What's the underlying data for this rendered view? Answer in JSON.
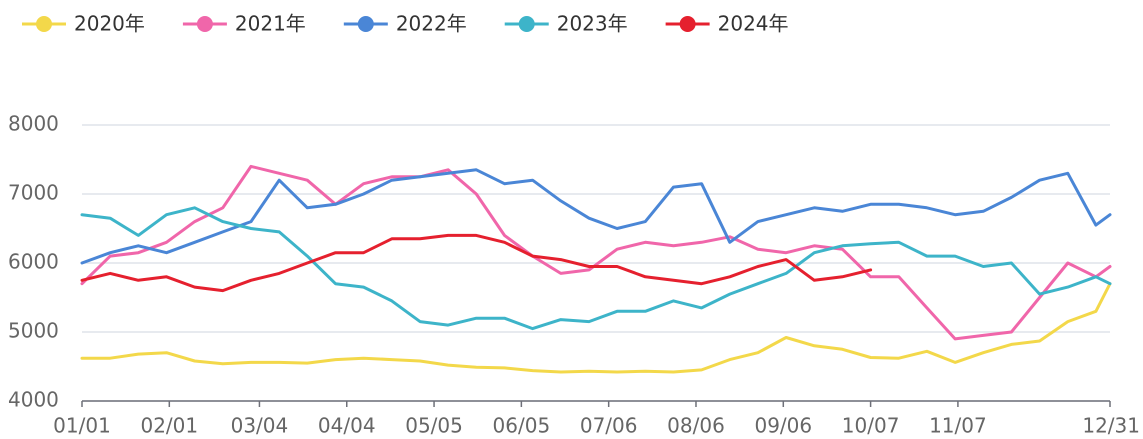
{
  "chart_data": {
    "type": "line",
    "x": [
      0,
      10,
      20,
      30,
      40,
      50,
      60,
      70,
      80,
      90,
      100,
      110,
      120,
      130,
      140,
      150,
      160,
      170,
      180,
      190,
      200,
      210,
      220,
      230,
      240,
      250,
      260,
      270,
      280,
      290,
      300,
      310,
      320,
      330,
      340,
      350,
      360,
      365
    ],
    "xlim": [
      0,
      365
    ],
    "xticks": [
      {
        "value": 0,
        "label": "01/01"
      },
      {
        "value": 31,
        "label": "02/01"
      },
      {
        "value": 63,
        "label": "03/04"
      },
      {
        "value": 94,
        "label": "04/04"
      },
      {
        "value": 125,
        "label": "05/05"
      },
      {
        "value": 156,
        "label": "06/05"
      },
      {
        "value": 187,
        "label": "07/06"
      },
      {
        "value": 218,
        "label": "08/06"
      },
      {
        "value": 249,
        "label": "09/06"
      },
      {
        "value": 280,
        "label": "10/07"
      },
      {
        "value": 311,
        "label": "11/07"
      },
      {
        "value": 365,
        "label": "12/31"
      }
    ],
    "ylim": [
      4000,
      8000
    ],
    "yticks": [
      4000,
      5000,
      6000,
      7000,
      8000
    ],
    "grid": true,
    "legend": "top-left",
    "series": [
      {
        "name": "2020年",
        "color": "#f3d84a",
        "values": [
          4620,
          4620,
          4680,
          4700,
          4580,
          4540,
          4560,
          4560,
          4550,
          4600,
          4620,
          4600,
          4580,
          4520,
          4490,
          4480,
          4440,
          4420,
          4430,
          4420,
          4430,
          4420,
          4450,
          4600,
          4700,
          4920,
          4800,
          4750,
          4630,
          4620,
          4720,
          4560,
          4700,
          4820,
          4870,
          5150,
          5300,
          5700
        ]
      },
      {
        "name": "2021年",
        "color": "#f066aa",
        "values": [
          5700,
          6100,
          6150,
          6300,
          6600,
          6800,
          7400,
          7300,
          7200,
          6850,
          7150,
          7250,
          7250,
          7350,
          7000,
          6400,
          6100,
          5850,
          5900,
          6200,
          6300,
          6250,
          6300,
          6380,
          6200,
          6150,
          6250,
          6200,
          5800,
          5800,
          5350,
          4900,
          4950,
          5000,
          5500,
          6000,
          5800,
          5950
        ]
      },
      {
        "name": "2022年",
        "color": "#4a86d6",
        "values": [
          6000,
          6150,
          6250,
          6150,
          6300,
          6450,
          6600,
          7200,
          6800,
          6850,
          7000,
          7200,
          7250,
          7300,
          7350,
          7150,
          7200,
          6900,
          6650,
          6500,
          6600,
          7100,
          7150,
          6300,
          6600,
          6700,
          6800,
          6750,
          6850,
          6850,
          6800,
          6700,
          6750,
          6950,
          7200,
          7300,
          6550,
          6700
        ]
      },
      {
        "name": "2023年",
        "color": "#3db4c9",
        "values": [
          6700,
          6650,
          6400,
          6700,
          6800,
          6600,
          6500,
          6450,
          6100,
          5700,
          5650,
          5450,
          5150,
          5100,
          5200,
          5200,
          5050,
          5180,
          5150,
          5300,
          5300,
          5450,
          5350,
          5550,
          5700,
          5850,
          6150,
          6250,
          6280,
          6300,
          6100,
          6100,
          5950,
          6000,
          5550,
          5650,
          5800,
          5700
        ]
      },
      {
        "name": "2024年",
        "color": "#e5202e",
        "values": [
          5750,
          5850,
          5750,
          5800,
          5650,
          5600,
          5750,
          5850,
          6000,
          6150,
          6150,
          6350,
          6350,
          6400,
          6400,
          6300,
          6100,
          6050,
          5950,
          5950,
          5800,
          5750,
          5700,
          5800,
          5950,
          6050,
          5750,
          5800,
          5900,
          null,
          null,
          null,
          null,
          null,
          null,
          null,
          null,
          null
        ]
      }
    ]
  }
}
